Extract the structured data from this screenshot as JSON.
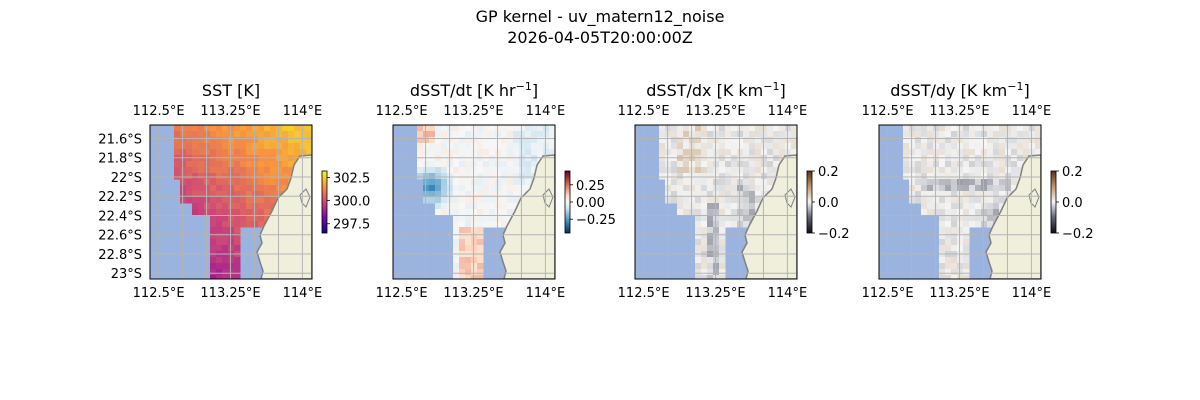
{
  "figure": {
    "title": "GP kernel - uv_matern12_noise",
    "timestamp": "2026-04-05T20:00:00Z"
  },
  "colors": {
    "ocean_mask": "#9bb3df",
    "land": "#efefdb",
    "coast": "#808080",
    "grid": "#b4b4b4"
  },
  "chart_data": [
    {
      "type": "heatmap",
      "title": "SST [K]",
      "title_main": "SST [K]",
      "title_sup": "",
      "title_tail": "",
      "field": "sst",
      "colormap": "plasma",
      "vlim": [
        296.5,
        303.2
      ],
      "lon_ticks": [
        "112.5°E",
        "113.25°E",
        "114°E"
      ],
      "lat_ticks": [
        "21.6°S",
        "21.8°S",
        "22°S",
        "22.2°S",
        "22.4°S",
        "22.6°S",
        "22.8°S",
        "23°S"
      ],
      "show_lat_labels": true,
      "colorbar_ticks": [
        {
          "value": 302.5,
          "label": "302.5"
        },
        {
          "value": 300.0,
          "label": "300.0"
        },
        {
          "value": 297.5,
          "label": "297.5"
        }
      ]
    },
    {
      "type": "heatmap",
      "title": "dSST/dt [K hr−1]",
      "title_main": "dSST/dt [K hr",
      "title_sup": "−1",
      "title_tail": "]",
      "field": "dsst_dt",
      "colormap": "RdBu_r",
      "vlim": [
        -0.45,
        0.45
      ],
      "lon_ticks": [
        "112.5°E",
        "113.25°E",
        "114°E"
      ],
      "lat_ticks": [],
      "show_lat_labels": false,
      "colorbar_ticks": [
        {
          "value": 0.25,
          "label": "0.25"
        },
        {
          "value": 0.0,
          "label": "0.00"
        },
        {
          "value": -0.25,
          "label": "−0.25"
        }
      ]
    },
    {
      "type": "heatmap",
      "title": "dSST/dx [K km−1]",
      "title_main": "dSST/dx [K km",
      "title_sup": "−1",
      "title_tail": "]",
      "field": "dsst_dx",
      "colormap": "diverging_brown",
      "vlim": [
        -0.2,
        0.2
      ],
      "lon_ticks": [
        "112.5°E",
        "113.25°E",
        "114°E"
      ],
      "lat_ticks": [],
      "show_lat_labels": false,
      "colorbar_ticks": [
        {
          "value": 0.2,
          "label": "0.2"
        },
        {
          "value": 0.0,
          "label": "0.0"
        },
        {
          "value": -0.2,
          "label": "−0.2"
        }
      ]
    },
    {
      "type": "heatmap",
      "title": "dSST/dy [K km−1]",
      "title_main": "dSST/dy [K km",
      "title_sup": "−1",
      "title_tail": "]",
      "field": "dsst_dy",
      "colormap": "diverging_brown",
      "vlim": [
        -0.2,
        0.2
      ],
      "lon_ticks": [
        "112.5°E",
        "113.25°E",
        "114°E"
      ],
      "lat_ticks": [],
      "show_lat_labels": false,
      "colorbar_ticks": [
        {
          "value": 0.2,
          "label": "0.2"
        },
        {
          "value": 0.0,
          "label": "0.0"
        },
        {
          "value": -0.2,
          "label": "−0.2"
        }
      ]
    }
  ]
}
